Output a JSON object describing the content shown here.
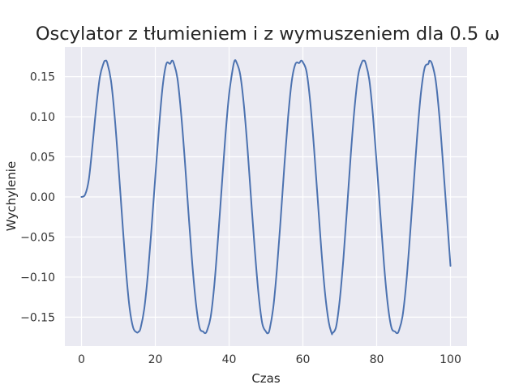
{
  "chart_data": {
    "type": "line",
    "title": "Oscylator z tłumieniem i z wymuszeniem dla 0.5 ω",
    "xlabel": "Czas",
    "ylabel": "Wychylenie",
    "xlim": [
      -4.5,
      104.5
    ],
    "ylim": [
      -0.186,
      0.187
    ],
    "xticks": [
      0,
      20,
      40,
      60,
      80,
      100
    ],
    "xtick_labels": [
      "0",
      "20",
      "40",
      "60",
      "80",
      "100"
    ],
    "yticks": [
      -0.15,
      -0.1,
      -0.05,
      0.0,
      0.05,
      0.1,
      0.15
    ],
    "ytick_labels": [
      "−0.15",
      "−0.10",
      "−0.05",
      "0.00",
      "0.05",
      "0.10",
      "0.15"
    ],
    "grid": true,
    "background": "#EAEAF2",
    "series": [
      {
        "color": "#4C72B0",
        "x": [
          0,
          1,
          2,
          3,
          4,
          5,
          6,
          6.5,
          7,
          8,
          9,
          10,
          11,
          12,
          13,
          14,
          15,
          15.5,
          16,
          17,
          18,
          19,
          20,
          21,
          22,
          23,
          24,
          24.5,
          25,
          26,
          27,
          28,
          29,
          30,
          31,
          32,
          33,
          33.5,
          34,
          35,
          36,
          37,
          38,
          39,
          40,
          41,
          41.5,
          42,
          43,
          44,
          45,
          46,
          47,
          48,
          49,
          50,
          50.5,
          51,
          52,
          53,
          54,
          55,
          56,
          57,
          58,
          59,
          59.5,
          60,
          61,
          62,
          63,
          64,
          65,
          66,
          67,
          67.8,
          68,
          69,
          70,
          71,
          72,
          73,
          74,
          75,
          76,
          76.5,
          77,
          78,
          79,
          80,
          81,
          82,
          83,
          84,
          85,
          85.5,
          86,
          87,
          88,
          89,
          90,
          91,
          92,
          93,
          94,
          94.3,
          95,
          96,
          97,
          98,
          99,
          100
        ],
        "y": [
          0.0,
          0.003,
          0.022,
          0.065,
          0.112,
          0.15,
          0.167,
          0.17,
          0.167,
          0.145,
          0.1,
          0.04,
          -0.025,
          -0.088,
          -0.137,
          -0.163,
          -0.169,
          -0.168,
          -0.164,
          -0.14,
          -0.096,
          -0.038,
          0.025,
          0.086,
          0.138,
          0.166,
          0.166,
          0.17,
          0.167,
          0.148,
          0.104,
          0.046,
          -0.02,
          -0.082,
          -0.132,
          -0.163,
          -0.168,
          -0.17,
          -0.167,
          -0.15,
          -0.11,
          -0.052,
          0.012,
          0.076,
          0.128,
          0.16,
          0.17,
          0.168,
          0.153,
          0.115,
          0.06,
          -0.005,
          -0.068,
          -0.122,
          -0.158,
          -0.168,
          -0.17,
          -0.165,
          -0.137,
          -0.088,
          -0.026,
          0.04,
          0.1,
          0.145,
          0.166,
          0.167,
          0.17,
          0.168,
          0.156,
          0.118,
          0.062,
          -0.002,
          -0.066,
          -0.12,
          -0.156,
          -0.17,
          -0.17,
          -0.162,
          -0.128,
          -0.076,
          -0.012,
          0.054,
          0.111,
          0.152,
          0.168,
          0.17,
          0.167,
          0.146,
          0.101,
          0.042,
          -0.022,
          -0.085,
          -0.134,
          -0.163,
          -0.168,
          -0.17,
          -0.167,
          -0.149,
          -0.108,
          -0.05,
          0.014,
          0.078,
          0.13,
          0.161,
          0.166,
          0.17,
          0.166,
          0.145,
          0.1,
          0.04,
          -0.023,
          -0.086
        ]
      }
    ]
  }
}
